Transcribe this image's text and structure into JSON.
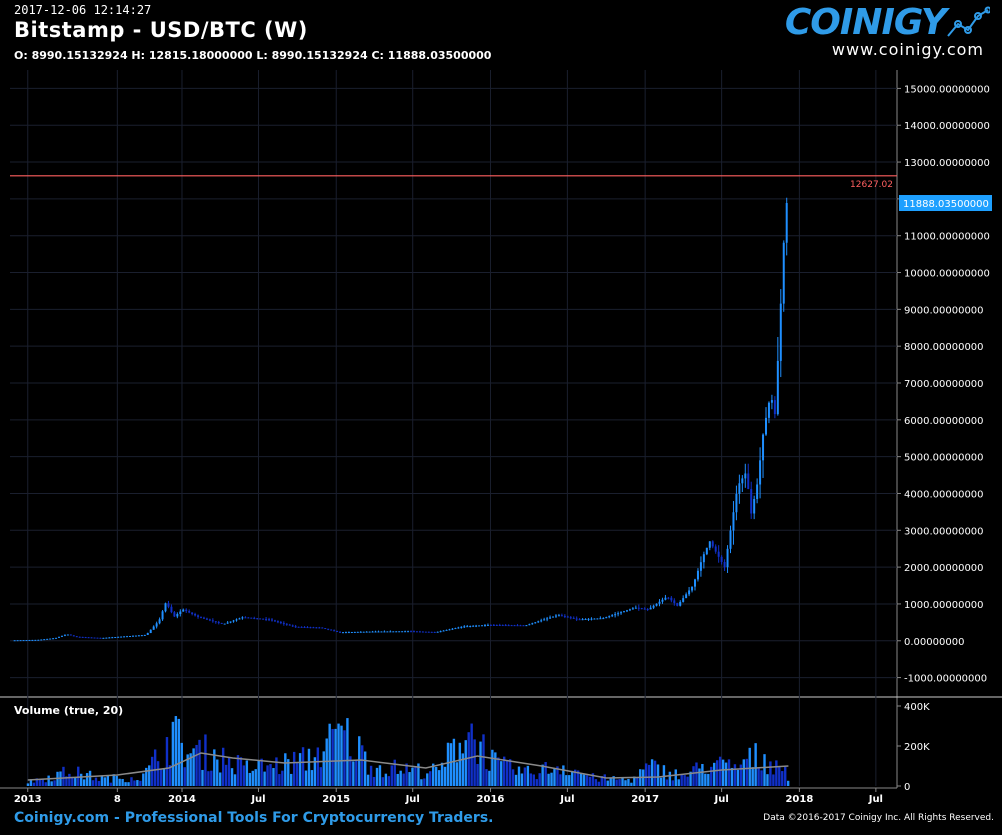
{
  "header": {
    "timestamp": "2017-12-06 12:14:27",
    "title": "Bitstamp - USD/BTC (W)",
    "ohlc": "O: 8990.15132924 H: 12815.18000000 L: 8990.15132924 C: 11888.03500000"
  },
  "logo": {
    "name": "COINIGY",
    "url": "www.coinigy.com"
  },
  "footer": {
    "tagline": "Coinigy.com - Professional Tools For Cryptocurrency Traders.",
    "copyright": "Data ©2016-2017 Coinigy Inc. All Rights Reserved."
  },
  "colors": {
    "up": "#1f8fff",
    "down": "#1030c8",
    "hline": "#ff6060",
    "last_price": "#1ea0ff",
    "grid": "#1a1f2e",
    "vol_ma": "#8a8a8a"
  },
  "chart_data": {
    "type": "candlestick",
    "title": "Bitstamp - USD/BTC (W)",
    "x_tick_labels": [
      "2013",
      "8",
      "2014",
      "Jul",
      "2015",
      "Jul",
      "2016",
      "Jul",
      "2017",
      "Jul",
      "2018",
      "Jul"
    ],
    "x_ticks": [
      "2013-01-01",
      "2013-08-01",
      "2014-01-01",
      "2014-07-01",
      "2015-01-01",
      "2015-07-01",
      "2016-01-01",
      "2016-07-01",
      "2017-01-01",
      "2017-07-01",
      "2018-01-01",
      "2018-07-01"
    ],
    "x_range": [
      "2012-11-20",
      "2018-08-20"
    ],
    "price_axis": {
      "ylim": [
        -1500,
        15500
      ],
      "ticks": [
        15000,
        14000,
        13000,
        12000,
        11000,
        10000,
        9000,
        8000,
        7000,
        6000,
        5000,
        4000,
        3000,
        2000,
        1000,
        0,
        -1000
      ],
      "tick_labels": [
        "15000.00000000",
        "14000.00000000",
        "13000.00000000",
        "12000.00000000",
        "11000.00000000",
        "10000.00000000",
        "9000.00000000",
        "8000.00000000",
        "7000.00000000",
        "6000.00000000",
        "5000.00000000",
        "4000.00000000",
        "3000.00000000",
        "2000.00000000",
        "1000.00000000",
        "0.00000000",
        "-1000.00000000"
      ]
    },
    "horizontal_line": {
      "value": 12627.02,
      "label": "12627.02"
    },
    "last_price": {
      "value": 11888.035,
      "label": "11888.03500000"
    },
    "volume_panel": {
      "label": "Volume (true, 20)",
      "ylim": [
        0,
        430000
      ],
      "ticks": [
        400000,
        200000,
        0
      ],
      "tick_labels": [
        "400K",
        "200K",
        "0"
      ]
    },
    "price_series": [
      {
        "date": "2012-12-01",
        "value": 13
      },
      {
        "date": "2013-02-01",
        "value": 25
      },
      {
        "date": "2013-03-15",
        "value": 75
      },
      {
        "date": "2013-04-10",
        "value": 180
      },
      {
        "date": "2013-05-01",
        "value": 110
      },
      {
        "date": "2013-07-01",
        "value": 75
      },
      {
        "date": "2013-09-01",
        "value": 125
      },
      {
        "date": "2013-10-15",
        "value": 160
      },
      {
        "date": "2013-11-15",
        "value": 550
      },
      {
        "date": "2013-12-01",
        "value": 1050
      },
      {
        "date": "2013-12-20",
        "value": 650
      },
      {
        "date": "2014-01-10",
        "value": 850
      },
      {
        "date": "2014-02-15",
        "value": 650
      },
      {
        "date": "2014-04-15",
        "value": 450
      },
      {
        "date": "2014-06-01",
        "value": 640
      },
      {
        "date": "2014-08-01",
        "value": 580
      },
      {
        "date": "2014-10-01",
        "value": 380
      },
      {
        "date": "2014-12-01",
        "value": 360
      },
      {
        "date": "2015-01-15",
        "value": 230
      },
      {
        "date": "2015-04-01",
        "value": 250
      },
      {
        "date": "2015-07-01",
        "value": 260
      },
      {
        "date": "2015-09-01",
        "value": 235
      },
      {
        "date": "2015-11-05",
        "value": 390
      },
      {
        "date": "2016-01-01",
        "value": 430
      },
      {
        "date": "2016-04-01",
        "value": 420
      },
      {
        "date": "2016-06-15",
        "value": 700
      },
      {
        "date": "2016-08-01",
        "value": 580
      },
      {
        "date": "2016-10-01",
        "value": 615
      },
      {
        "date": "2016-12-15",
        "value": 900
      },
      {
        "date": "2017-01-15",
        "value": 850
      },
      {
        "date": "2017-03-01",
        "value": 1200
      },
      {
        "date": "2017-03-25",
        "value": 950
      },
      {
        "date": "2017-05-01",
        "value": 1500
      },
      {
        "date": "2017-05-25",
        "value": 2300
      },
      {
        "date": "2017-06-10",
        "value": 2700
      },
      {
        "date": "2017-07-15",
        "value": 2000
      },
      {
        "date": "2017-08-15",
        "value": 4200
      },
      {
        "date": "2017-09-05",
        "value": 4600
      },
      {
        "date": "2017-09-15",
        "value": 3400
      },
      {
        "date": "2017-10-01",
        "value": 4300
      },
      {
        "date": "2017-10-15",
        "value": 5700
      },
      {
        "date": "2017-11-01",
        "value": 6700
      },
      {
        "date": "2017-11-12",
        "value": 6100
      },
      {
        "date": "2017-11-20",
        "value": 8100
      },
      {
        "date": "2017-11-29",
        "value": 10000
      },
      {
        "date": "2017-12-06",
        "value": 11888
      }
    ],
    "volume_series": [
      {
        "date": "2013-01-01",
        "value": 25000
      },
      {
        "date": "2013-04-10",
        "value": 90000
      },
      {
        "date": "2013-07-01",
        "value": 45000
      },
      {
        "date": "2013-10-01",
        "value": 60000
      },
      {
        "date": "2013-11-25",
        "value": 250000
      },
      {
        "date": "2013-12-10",
        "value": 330000
      },
      {
        "date": "2014-01-15",
        "value": 200000
      },
      {
        "date": "2014-03-01",
        "value": 210000
      },
      {
        "date": "2014-06-01",
        "value": 110000
      },
      {
        "date": "2014-08-15",
        "value": 130000
      },
      {
        "date": "2014-11-01",
        "value": 170000
      },
      {
        "date": "2015-01-15",
        "value": 330000
      },
      {
        "date": "2015-04-01",
        "value": 120000
      },
      {
        "date": "2015-07-01",
        "value": 100000
      },
      {
        "date": "2015-09-01",
        "value": 90000
      },
      {
        "date": "2015-11-05",
        "value": 370000
      },
      {
        "date": "2016-01-15",
        "value": 130000
      },
      {
        "date": "2016-04-01",
        "value": 80000
      },
      {
        "date": "2016-06-20",
        "value": 130000
      },
      {
        "date": "2016-09-01",
        "value": 50000
      },
      {
        "date": "2016-12-01",
        "value": 40000
      },
      {
        "date": "2017-01-10",
        "value": 120000
      },
      {
        "date": "2017-04-01",
        "value": 60000
      },
      {
        "date": "2017-06-01",
        "value": 140000
      },
      {
        "date": "2017-08-01",
        "value": 110000
      },
      {
        "date": "2017-09-15",
        "value": 180000
      },
      {
        "date": "2017-11-15",
        "value": 140000
      },
      {
        "date": "2017-12-06",
        "value": 70000
      }
    ],
    "volume_ma_series": [
      {
        "date": "2013-01-01",
        "value": 30000
      },
      {
        "date": "2013-08-01",
        "value": 55000
      },
      {
        "date": "2013-12-01",
        "value": 90000
      },
      {
        "date": "2014-02-15",
        "value": 165000
      },
      {
        "date": "2014-05-01",
        "value": 140000
      },
      {
        "date": "2014-09-01",
        "value": 115000
      },
      {
        "date": "2015-03-01",
        "value": 130000
      },
      {
        "date": "2015-08-01",
        "value": 90000
      },
      {
        "date": "2015-12-01",
        "value": 150000
      },
      {
        "date": "2016-05-01",
        "value": 100000
      },
      {
        "date": "2016-10-01",
        "value": 40000
      },
      {
        "date": "2017-02-01",
        "value": 45000
      },
      {
        "date": "2017-07-01",
        "value": 80000
      },
      {
        "date": "2017-12-06",
        "value": 100000
      }
    ]
  }
}
